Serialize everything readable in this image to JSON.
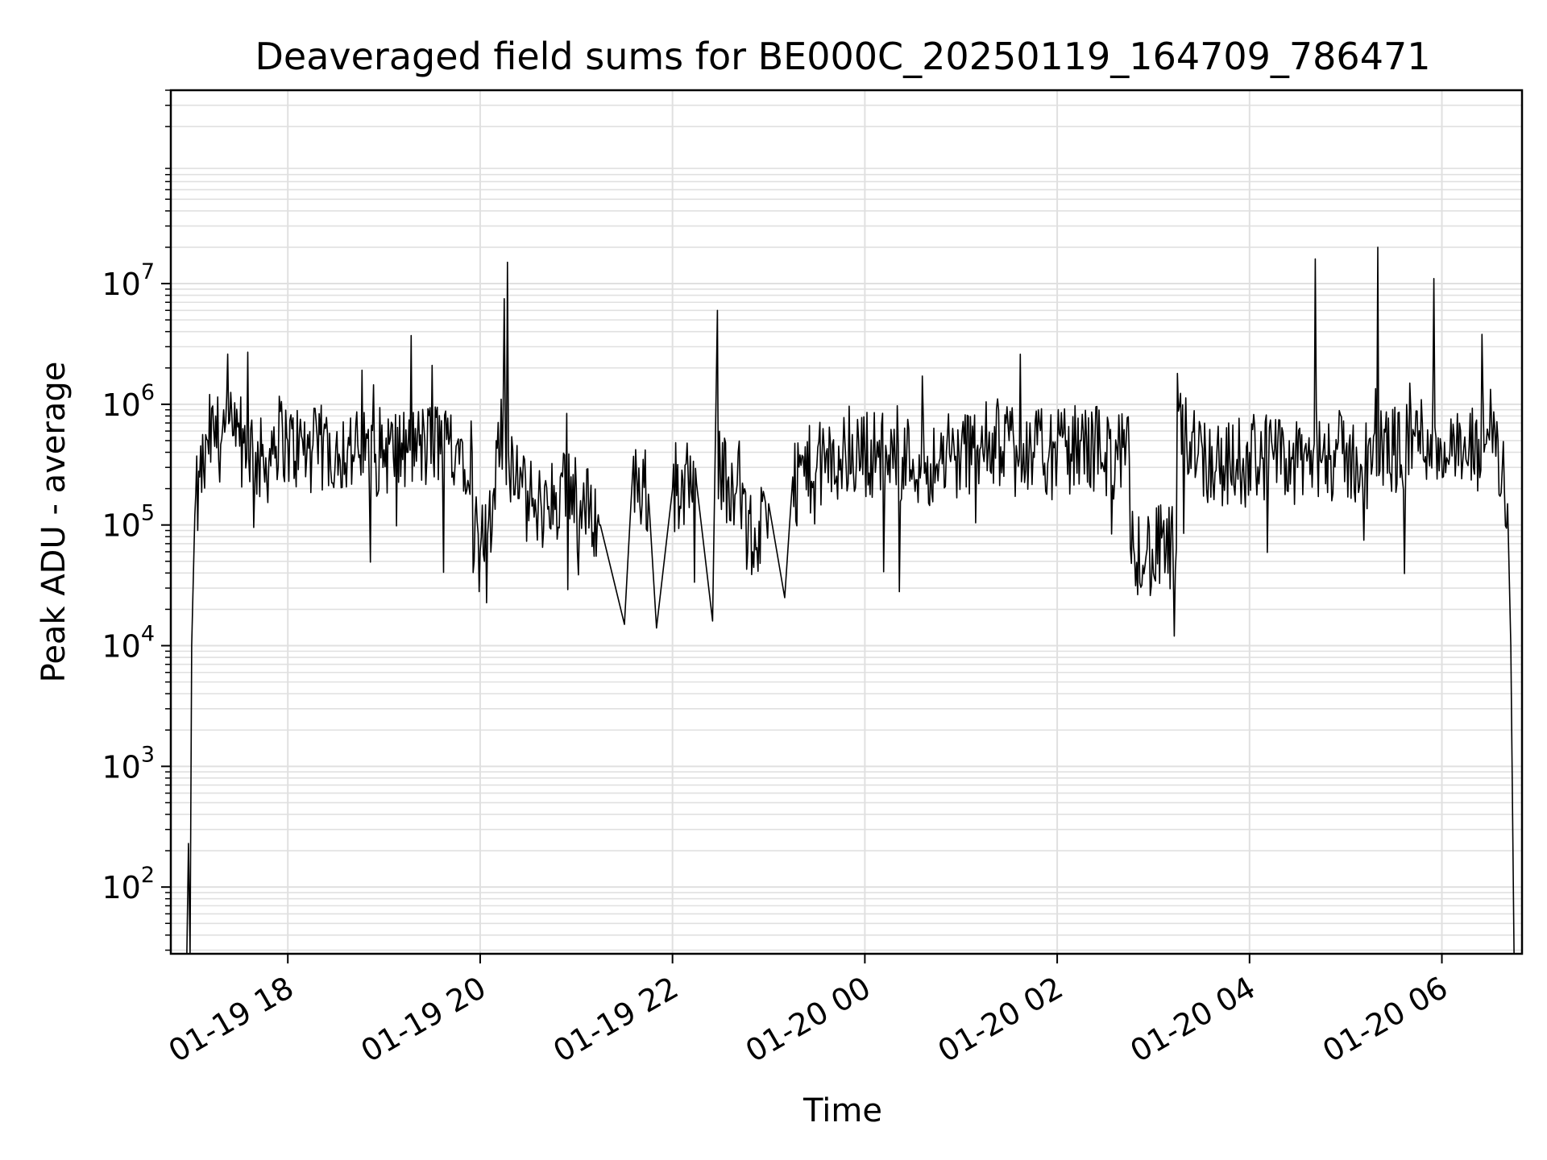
{
  "chart_data": {
    "type": "line",
    "title": "Deaveraged field sums for BE000C_20250119_164709_786471",
    "xlabel": "Time",
    "ylabel": "Peak ADU - average",
    "yscale": "log",
    "ylim": [
      28,
      400000000
    ],
    "xlim": [
      "2025-01-19 16:47",
      "2025-01-20 06:50"
    ],
    "grid": true,
    "line_color": "#000000",
    "grid_color": "#e0e0e0",
    "x_ticks": [
      {
        "value": "2025-01-19 18:00",
        "label": "01-19 18"
      },
      {
        "value": "2025-01-19 20:00",
        "label": "01-19 20"
      },
      {
        "value": "2025-01-19 22:00",
        "label": "01-19 22"
      },
      {
        "value": "2025-01-20 00:00",
        "label": "01-20 00"
      },
      {
        "value": "2025-01-20 02:00",
        "label": "01-20 02"
      },
      {
        "value": "2025-01-20 04:00",
        "label": "01-20 04"
      },
      {
        "value": "2025-01-20 06:00",
        "label": "01-20 06"
      }
    ],
    "y_ticks": [
      {
        "value": 100,
        "base": "10",
        "exp": "2"
      },
      {
        "value": 1000,
        "base": "10",
        "exp": "3"
      },
      {
        "value": 10000,
        "base": "10",
        "exp": "4"
      },
      {
        "value": 100000,
        "base": "10",
        "exp": "5"
      },
      {
        "value": 1000000,
        "base": "10",
        "exp": "6"
      },
      {
        "value": 10000000,
        "base": "10",
        "exp": "7"
      }
    ],
    "series": [
      {
        "x": [
          "2025-01-19 16:57",
          "2025-01-19 16:58",
          "2025-01-19 16:59",
          "2025-01-19 17:00",
          "2025-01-19 17:02",
          "2025-01-19 17:05",
          "2025-01-19 17:10",
          "2025-01-19 17:15",
          "2025-01-19 17:20",
          "2025-01-19 17:25",
          "2025-01-19 17:30",
          "2025-01-19 17:35",
          "2025-01-19 17:40",
          "2025-01-19 17:45",
          "2025-01-19 17:50",
          "2025-01-19 18:00",
          "2025-01-19 18:15",
          "2025-01-19 18:30",
          "2025-01-19 18:45",
          "2025-01-19 19:00",
          "2025-01-19 19:15",
          "2025-01-19 19:30",
          "2025-01-19 19:45",
          "2025-01-19 19:55",
          "2025-01-19 20:00",
          "2025-01-19 20:10",
          "2025-01-19 20:15",
          "2025-01-19 20:17",
          "2025-01-19 20:25",
          "2025-01-19 20:35",
          "2025-01-19 20:50",
          "2025-01-19 21:00",
          "2025-01-19 21:15",
          "2025-01-19 21:30",
          "2025-01-19 21:35",
          "2025-01-19 21:45",
          "2025-01-19 21:50",
          "2025-01-19 22:00",
          "2025-01-19 22:15",
          "2025-01-19 22:25",
          "2025-01-19 22:28",
          "2025-01-19 22:35",
          "2025-01-19 22:45",
          "2025-01-19 22:50",
          "2025-01-19 23:00",
          "2025-01-19 23:10",
          "2025-01-19 23:15",
          "2025-01-19 23:30",
          "2025-01-19 23:45",
          "2025-01-20 00:00",
          "2025-01-20 00:15",
          "2025-01-20 00:30",
          "2025-01-20 00:45",
          "2025-01-20 01:00",
          "2025-01-20 01:15",
          "2025-01-20 01:30",
          "2025-01-20 01:37",
          "2025-01-20 01:45",
          "2025-01-20 02:00",
          "2025-01-20 02:15",
          "2025-01-20 02:30",
          "2025-01-20 02:45",
          "2025-01-20 03:00",
          "2025-01-20 03:15",
          "2025-01-20 03:30",
          "2025-01-20 03:45",
          "2025-01-20 04:00",
          "2025-01-20 04:15",
          "2025-01-20 04:30",
          "2025-01-20 04:41",
          "2025-01-20 04:50",
          "2025-01-20 05:00",
          "2025-01-20 05:10",
          "2025-01-20 05:20",
          "2025-01-20 05:30",
          "2025-01-20 05:40",
          "2025-01-20 05:55",
          "2025-01-20 06:05",
          "2025-01-20 06:15",
          "2025-01-20 06:25",
          "2025-01-20 06:35",
          "2025-01-20 06:39",
          "2025-01-20 06:41",
          "2025-01-20 06:43",
          "2025-01-20 06:45"
        ],
        "y": [
          28,
          230,
          28,
          10000,
          120000,
          250000,
          500000,
          800000,
          900000,
          850000,
          450000,
          2700000,
          400000,
          300000,
          600000,
          500000,
          400000,
          450000,
          380000,
          420000,
          400000,
          2100000,
          450000,
          400000,
          60000,
          500000,
          7500000,
          15000000,
          300000,
          120000,
          250000,
          200000,
          100000,
          15000,
          250000,
          180000,
          14000,
          200000,
          220000,
          16000,
          6000000,
          250000,
          200000,
          60000,
          150000,
          25000,
          250000,
          300000,
          350000,
          400000,
          380000,
          350000,
          320000,
          400000,
          450000,
          500000,
          2600000,
          400000,
          380000,
          500000,
          400000,
          350000,
          40000,
          1800000,
          500000,
          300000,
          400000,
          350000,
          300000,
          16000000,
          350000,
          400000,
          300000,
          20000000,
          380000,
          1500000,
          11000000,
          400000,
          350000,
          3800000,
          500000,
          200000,
          150000,
          10000,
          28
        ]
      }
    ]
  }
}
